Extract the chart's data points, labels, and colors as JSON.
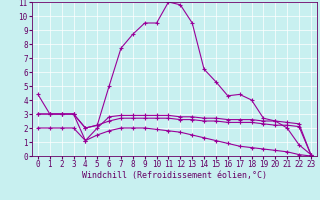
{
  "xlabel": "Windchill (Refroidissement éolien,°C)",
  "bg_color": "#c8f0f0",
  "line_color": "#990099",
  "marker": "+",
  "xlim": [
    -0.5,
    23.5
  ],
  "ylim": [
    0,
    11
  ],
  "xticks": [
    0,
    1,
    2,
    3,
    4,
    5,
    6,
    7,
    8,
    9,
    10,
    11,
    12,
    13,
    14,
    15,
    16,
    17,
    18,
    19,
    20,
    21,
    22,
    23
  ],
  "yticks": [
    0,
    1,
    2,
    3,
    4,
    5,
    6,
    7,
    8,
    9,
    10,
    11
  ],
  "line1_x": [
    0,
    1,
    2,
    3,
    4,
    5,
    6,
    7,
    8,
    9,
    10,
    11,
    12,
    13,
    14,
    15,
    16,
    17,
    18,
    19,
    20,
    21,
    22,
    23
  ],
  "line1_y": [
    4.4,
    3.0,
    3.0,
    3.0,
    2.0,
    2.2,
    5.0,
    7.7,
    8.7,
    9.5,
    9.5,
    11.0,
    10.8,
    9.5,
    6.2,
    5.3,
    4.3,
    4.4,
    4.0,
    2.7,
    2.5,
    2.0,
    0.8,
    0.1
  ],
  "line2_x": [
    0,
    1,
    2,
    3,
    4,
    5,
    6,
    7,
    8,
    9,
    10,
    11,
    12,
    13,
    14,
    15,
    16,
    17,
    18,
    19,
    20,
    21,
    22,
    23
  ],
  "line2_y": [
    3.0,
    3.0,
    3.0,
    3.0,
    1.1,
    2.0,
    2.8,
    2.9,
    2.9,
    2.9,
    2.9,
    2.9,
    2.8,
    2.8,
    2.7,
    2.7,
    2.6,
    2.6,
    2.6,
    2.5,
    2.5,
    2.4,
    2.3,
    0.1
  ],
  "line3_x": [
    0,
    1,
    2,
    3,
    4,
    5,
    6,
    7,
    8,
    9,
    10,
    11,
    12,
    13,
    14,
    15,
    16,
    17,
    18,
    19,
    20,
    21,
    22,
    23
  ],
  "line3_y": [
    3.0,
    3.0,
    3.0,
    3.0,
    2.0,
    2.2,
    2.5,
    2.7,
    2.7,
    2.7,
    2.7,
    2.7,
    2.6,
    2.6,
    2.5,
    2.5,
    2.4,
    2.4,
    2.4,
    2.3,
    2.2,
    2.2,
    2.1,
    0.1
  ],
  "line4_x": [
    0,
    1,
    2,
    3,
    4,
    5,
    6,
    7,
    8,
    9,
    10,
    11,
    12,
    13,
    14,
    15,
    16,
    17,
    18,
    19,
    20,
    21,
    22,
    23
  ],
  "line4_y": [
    2.0,
    2.0,
    2.0,
    2.0,
    1.1,
    1.5,
    1.8,
    2.0,
    2.0,
    2.0,
    1.9,
    1.8,
    1.7,
    1.5,
    1.3,
    1.1,
    0.9,
    0.7,
    0.6,
    0.5,
    0.4,
    0.3,
    0.1,
    0.0
  ],
  "grid_color": "#ffffff",
  "spine_color": "#660066",
  "tick_color": "#660066",
  "label_color": "#660066",
  "tick_fontsize": 5.5,
  "xlabel_fontsize": 6.0,
  "linewidth": 0.8,
  "markersize": 3
}
